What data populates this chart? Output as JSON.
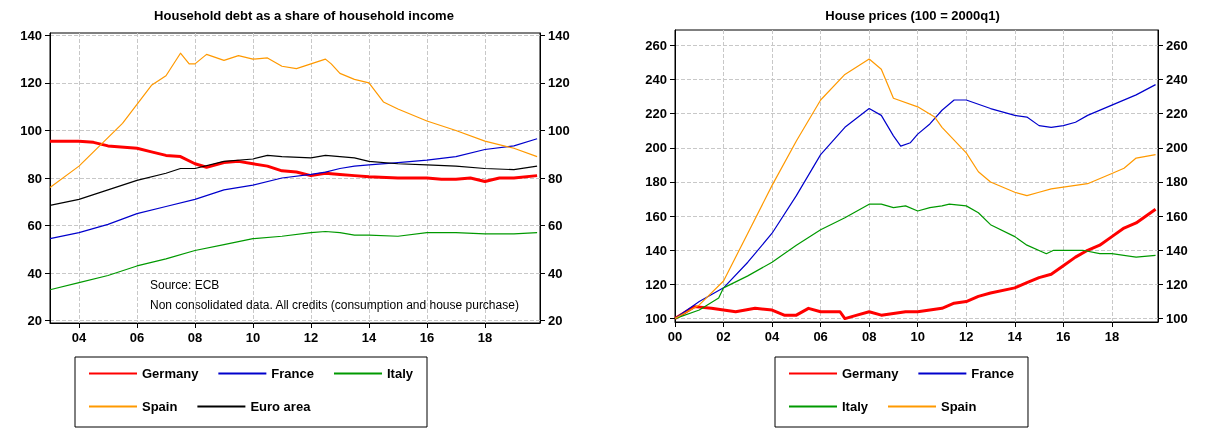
{
  "chart_data": [
    {
      "type": "line",
      "title": "Household debt as a share of household income",
      "annotations": [
        "Source: ECB",
        "Non consolidated data. All credits (consumption and house purchase)"
      ],
      "xlim": [
        2003,
        2019.9
      ],
      "xticks": [
        {
          "value": 2004,
          "label": "04"
        },
        {
          "value": 2006,
          "label": "06"
        },
        {
          "value": 2008,
          "label": "08"
        },
        {
          "value": 2010,
          "label": "10"
        },
        {
          "value": 2012,
          "label": "12"
        },
        {
          "value": 2014,
          "label": "14"
        },
        {
          "value": 2016,
          "label": "16"
        },
        {
          "value": 2018,
          "label": "18"
        }
      ],
      "ylim": [
        19,
        141
      ],
      "yticks": [
        20,
        40,
        60,
        80,
        100,
        120,
        140
      ],
      "y2lim": [
        19,
        141
      ],
      "y2ticks": [
        20,
        40,
        60,
        80,
        100,
        120,
        140
      ],
      "grid": true,
      "legend": "bottom",
      "marker": "none",
      "line_style": "solid",
      "series": [
        {
          "name": "Germany",
          "color": "#ff0000",
          "x": [
            2003,
            2004,
            2004.5,
            2005,
            2006,
            2006.5,
            2007,
            2007.5,
            2008,
            2008.4,
            2009,
            2009.5,
            2010,
            2010.5,
            2011,
            2011.5,
            2012,
            2012.5,
            2013,
            2013.5,
            2014,
            2015,
            2016,
            2016.5,
            2017,
            2017.5,
            2018,
            2018.5,
            2019,
            2019.8
          ],
          "values": [
            95.5,
            95.5,
            95,
            93.5,
            92.5,
            91,
            89.5,
            89,
            86,
            84.5,
            86.5,
            87,
            86,
            85,
            83,
            82.5,
            81,
            82,
            81.5,
            81,
            80.5,
            80,
            80,
            79.5,
            79.5,
            80,
            78.5,
            80,
            80,
            81
          ]
        },
        {
          "name": "France",
          "color": "#0000cc",
          "x": [
            2003,
            2004,
            2005,
            2006,
            2007,
            2008,
            2009,
            2010,
            2011,
            2012,
            2012.5,
            2013,
            2013.5,
            2014,
            2015,
            2016,
            2017,
            2018,
            2019,
            2019.8
          ],
          "values": [
            54.5,
            57,
            60.5,
            65,
            68,
            71,
            75,
            77,
            80,
            81.5,
            82.5,
            84,
            85,
            85.5,
            86.5,
            87.5,
            89,
            92,
            93.5,
            96.5
          ]
        },
        {
          "name": "Italy",
          "color": "#009900",
          "x": [
            2003,
            2004,
            2005,
            2006,
            2007,
            2008,
            2009,
            2010,
            2011,
            2012,
            2012.5,
            2013,
            2013.5,
            2014,
            2015,
            2016,
            2017,
            2018,
            2019,
            2019.8
          ],
          "values": [
            33,
            36,
            39,
            43,
            46,
            49.5,
            52,
            54.5,
            55.5,
            57,
            57.5,
            57,
            56,
            56,
            55.5,
            57,
            57,
            56.5,
            56.5,
            57
          ]
        },
        {
          "name": "Spain",
          "color": "#ff9900",
          "x": [
            2003,
            2004,
            2005,
            2005.5,
            2006,
            2006.5,
            2007,
            2007.5,
            2007.8,
            2008,
            2008.4,
            2009,
            2009.5,
            2010,
            2010.5,
            2011,
            2011.5,
            2012,
            2012.5,
            2012.7,
            2013,
            2013.5,
            2014,
            2014.5,
            2015,
            2016,
            2017,
            2018,
            2019,
            2019.8
          ],
          "values": [
            76,
            85,
            97,
            103,
            111,
            119,
            123,
            132.5,
            128,
            128,
            132,
            129.5,
            131.5,
            130,
            130.5,
            127,
            126,
            128,
            130,
            128,
            124,
            121.5,
            120,
            112,
            109,
            104,
            100,
            95.5,
            92.5,
            89
          ]
        },
        {
          "name": "Euro area",
          "color": "#000000",
          "x": [
            2003,
            2004,
            2005,
            2006,
            2007,
            2007.5,
            2008,
            2009,
            2010,
            2010.5,
            2011,
            2012,
            2012.5,
            2013,
            2013.5,
            2014,
            2015,
            2016,
            2017,
            2018,
            2019,
            2019.8
          ],
          "values": [
            68.5,
            71,
            75,
            79,
            82,
            84,
            84,
            87,
            88,
            89.5,
            89,
            88.5,
            89.5,
            89,
            88.5,
            87,
            86,
            85.5,
            85,
            84,
            83.5,
            85
          ]
        }
      ]
    },
    {
      "type": "line",
      "title": "House prices (100 = 2000q1)",
      "xlim": [
        2000,
        2019.9
      ],
      "xticks": [
        {
          "value": 2000,
          "label": "00"
        },
        {
          "value": 2002,
          "label": "02"
        },
        {
          "value": 2004,
          "label": "04"
        },
        {
          "value": 2006,
          "label": "06"
        },
        {
          "value": 2008,
          "label": "08"
        },
        {
          "value": 2010,
          "label": "10"
        },
        {
          "value": 2012,
          "label": "12"
        },
        {
          "value": 2014,
          "label": "14"
        },
        {
          "value": 2016,
          "label": "16"
        },
        {
          "value": 2018,
          "label": "18"
        }
      ],
      "ylim": [
        98,
        269
      ],
      "yticks": [
        100,
        120,
        140,
        160,
        180,
        200,
        220,
        240,
        260
      ],
      "y2lim": [
        98,
        269
      ],
      "y2ticks": [
        100,
        120,
        140,
        160,
        180,
        200,
        220,
        240,
        260
      ],
      "grid": true,
      "legend": "bottom",
      "marker": "none",
      "line_style": "solid",
      "series": [
        {
          "name": "Germany",
          "color": "#ff0000",
          "x": [
            2000,
            2000.8,
            2001.5,
            2002.5,
            2003.3,
            2004,
            2004.5,
            2005,
            2005.5,
            2006,
            2006.8,
            2007,
            2007.5,
            2008,
            2008.5,
            2009,
            2009.5,
            2010,
            2010.5,
            2011,
            2011.5,
            2012,
            2012.5,
            2013,
            2014,
            2014.5,
            2015,
            2015.5,
            2016,
            2016.5,
            2017,
            2017.5,
            2018,
            2018.5,
            2019,
            2019.8
          ],
          "values": [
            100,
            107,
            106,
            104,
            106,
            105,
            102,
            102,
            106,
            104,
            104,
            100,
            102,
            104,
            102,
            103,
            104,
            104,
            105,
            106,
            109,
            110,
            113,
            115,
            118,
            121,
            124,
            126,
            131,
            136,
            140,
            143,
            148,
            153,
            156,
            164
          ]
        },
        {
          "name": "France",
          "color": "#0000cc",
          "x": [
            2000,
            2001,
            2002,
            2003,
            2004,
            2005,
            2006,
            2007,
            2008,
            2008.5,
            2009,
            2009.3,
            2009.7,
            2010,
            2010.5,
            2011,
            2011.5,
            2012,
            2013,
            2014,
            2014.5,
            2015,
            2015.5,
            2016,
            2016.5,
            2017,
            2018,
            2019,
            2019.8
          ],
          "values": [
            100,
            110,
            118,
            133,
            150,
            172,
            196,
            212,
            223,
            219,
            207,
            201,
            203,
            208,
            214,
            222,
            228,
            228,
            223,
            219,
            218,
            213,
            212,
            213,
            215,
            219,
            225,
            231,
            237
          ]
        },
        {
          "name": "Italy",
          "color": "#009900",
          "x": [
            2000,
            2001,
            2001.8,
            2002,
            2003,
            2004,
            2005,
            2006,
            2007,
            2008,
            2008.5,
            2009,
            2009.5,
            2010,
            2010.5,
            2011,
            2011.3,
            2012,
            2012.5,
            2013,
            2014,
            2014.5,
            2015.3,
            2015.6,
            2016,
            2016.8,
            2017.5,
            2018,
            2019,
            2019.8
          ],
          "values": [
            100,
            105,
            112,
            118,
            125,
            133,
            143,
            152,
            159,
            167,
            167,
            165,
            166,
            163,
            165,
            166,
            167,
            166,
            162,
            155,
            148,
            143,
            138,
            140,
            140,
            140,
            138,
            138,
            136,
            137
          ]
        },
        {
          "name": "Spain",
          "color": "#ff9900",
          "x": [
            2000,
            2001,
            2002,
            2003,
            2004,
            2005,
            2006,
            2007,
            2008,
            2008.5,
            2009,
            2010,
            2010.7,
            2011,
            2012,
            2012.5,
            2013,
            2014,
            2014.5,
            2015,
            2015.5,
            2016,
            2017,
            2018,
            2018.5,
            2019,
            2019.8
          ],
          "values": [
            100,
            108,
            122,
            150,
            178,
            204,
            228,
            243,
            252,
            246,
            229,
            224,
            218,
            212,
            197,
            186,
            180,
            174,
            172,
            174,
            176,
            177,
            179,
            185,
            188,
            194,
            196
          ]
        }
      ]
    }
  ]
}
